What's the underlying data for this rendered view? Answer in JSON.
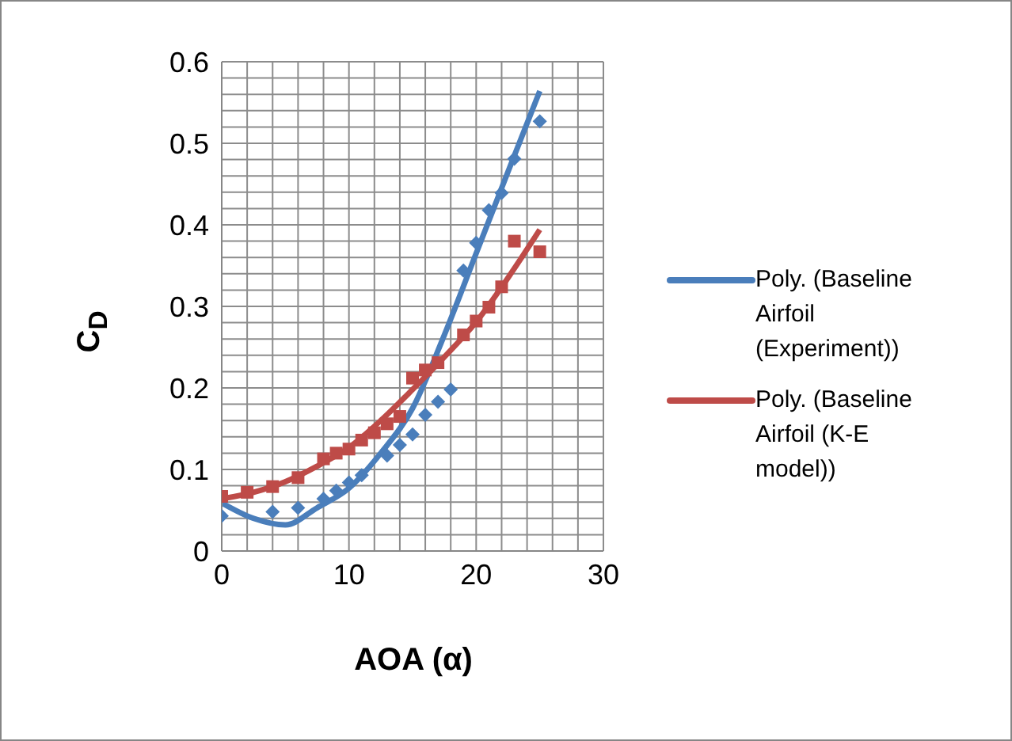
{
  "chart_data": {
    "type": "scatter",
    "xlabel": "AOA (α)",
    "ylabel": "C$_{D}$",
    "xlim": [
      0,
      30
    ],
    "xticks": [
      0,
      {
        "value": 2,
        "label": null
      },
      {
        "value": 4,
        "label": null
      },
      {
        "value": 6,
        "label": null
      },
      {
        "value": 8,
        "label": null
      },
      10,
      {
        "value": 12,
        "label": null
      },
      {
        "value": 14,
        "label": null
      },
      {
        "value": 16,
        "label": null
      },
      {
        "value": 18,
        "label": null
      },
      20,
      {
        "value": 22,
        "label": null
      },
      {
        "value": 24,
        "label": null
      },
      {
        "value": 26,
        "label": null
      },
      {
        "value": 28,
        "label": null
      },
      30
    ],
    "ylim": [
      0,
      0.6
    ],
    "yticks": [
      0,
      {
        "value": 0.02,
        "label": null
      },
      {
        "value": 0.04,
        "label": null
      },
      {
        "value": 0.06,
        "label": null
      },
      {
        "value": 0.08,
        "label": null
      },
      0.1,
      {
        "value": 0.12,
        "label": null
      },
      {
        "value": 0.14,
        "label": null
      },
      {
        "value": 0.16,
        "label": null
      },
      {
        "value": 0.18,
        "label": null
      },
      0.2,
      {
        "value": 0.22,
        "label": null
      },
      {
        "value": 0.24,
        "label": null
      },
      {
        "value": 0.26,
        "label": null
      },
      {
        "value": 0.28,
        "label": null
      },
      0.3,
      {
        "value": 0.32,
        "label": null
      },
      {
        "value": 0.34,
        "label": null
      },
      {
        "value": 0.36,
        "label": null
      },
      {
        "value": 0.38,
        "label": null
      },
      0.4,
      {
        "value": 0.42,
        "label": null
      },
      {
        "value": 0.44,
        "label": null
      },
      {
        "value": 0.46,
        "label": null
      },
      {
        "value": 0.48,
        "label": null
      },
      0.5,
      {
        "value": 0.52,
        "label": null
      },
      {
        "value": 0.54,
        "label": null
      },
      {
        "value": 0.56,
        "label": null
      },
      {
        "value": 0.58,
        "label": null
      },
      0.6
    ],
    "grid": true,
    "legend": "right",
    "series": [
      {
        "color": "#4a7ebb",
        "marker": "diamond",
        "x": [
          0,
          4,
          6,
          8,
          9,
          10,
          11,
          13,
          14,
          15,
          16,
          17,
          18,
          19,
          20,
          21,
          22,
          23,
          25
        ],
        "values": [
          0.043,
          0.048,
          0.053,
          0.064,
          0.074,
          0.084,
          0.093,
          0.117,
          0.13,
          0.143,
          0.167,
          0.183,
          0.198,
          0.344,
          0.378,
          0.418,
          0.439,
          0.481,
          0.527
        ]
      },
      {
        "color": "#be4b48",
        "marker": "square",
        "x": [
          0,
          2,
          4,
          6,
          8,
          9,
          10,
          11,
          12,
          13,
          14,
          15,
          16,
          17,
          19,
          20,
          21,
          22,
          23,
          25
        ],
        "values": [
          0.067,
          0.072,
          0.079,
          0.09,
          0.113,
          0.12,
          0.125,
          0.136,
          0.145,
          0.156,
          0.165,
          0.212,
          0.222,
          0.231,
          0.265,
          0.282,
          0.299,
          0.324,
          0.38,
          0.367
        ]
      },
      {
        "type": "line",
        "name": "Poly. (Baseline Airfoil (Experiment))",
        "color": "#4a7ebb",
        "marker": "none",
        "x": [
          0,
          2.5,
          5,
          7.5,
          10,
          12.5,
          15,
          17.5,
          20,
          22.5,
          25
        ],
        "values": [
          0.059,
          0.04,
          0.032,
          0.053,
          0.077,
          0.12,
          0.175,
          0.265,
          0.365,
          0.465,
          0.564
        ]
      },
      {
        "type": "line",
        "name": "Poly. (Baseline Airfoil (K-E model))",
        "color": "#be4b48",
        "marker": "none",
        "x": [
          0,
          2.5,
          5,
          7.5,
          10,
          12.5,
          15,
          17.5,
          20,
          22.5,
          25
        ],
        "values": [
          0.064,
          0.072,
          0.085,
          0.104,
          0.127,
          0.16,
          0.198,
          0.238,
          0.281,
          0.335,
          0.394
        ]
      }
    ]
  }
}
